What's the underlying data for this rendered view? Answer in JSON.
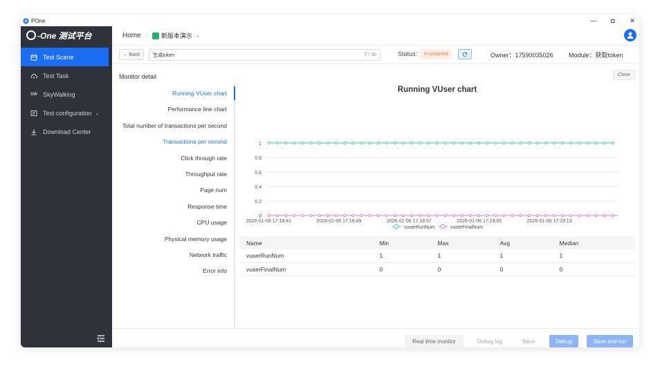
{
  "window": {
    "app_name": "POne",
    "minimize": "—",
    "restore": "◘",
    "close": "✕"
  },
  "sidebar": {
    "logo_text": "-One 测试平台",
    "items": [
      {
        "label": "Test Scene",
        "icon": "calendar-icon",
        "active": true
      },
      {
        "label": "Test Task",
        "icon": "cloud-upload-icon",
        "active": false
      },
      {
        "label": "SkyWalking",
        "icon": "skywalking-icon",
        "active": false
      },
      {
        "label": "Test configuration",
        "icon": "settings-icon",
        "active": false,
        "has_children": true
      },
      {
        "label": "Download Center",
        "icon": "download-icon",
        "active": false
      }
    ]
  },
  "header": {
    "home": "Home",
    "separator": "/",
    "project": "新版本演示",
    "dropdown": "⌄"
  },
  "toolbar": {
    "back_label": "← Back",
    "name_value": "生成token",
    "name_count": "7 / 30",
    "status_label": "Status:",
    "status_value": "In progress",
    "owner": "Owner：17590035026",
    "module": "Module：获取token"
  },
  "panel": {
    "title": "Monitor detail",
    "close_label": "Close"
  },
  "metrics": [
    {
      "label": "Running VUser chart",
      "state": "active"
    },
    {
      "label": "Performance line chart",
      "state": "normal"
    },
    {
      "label": "Total number of transactions per second",
      "state": "normal"
    },
    {
      "label": "Transactions per second",
      "state": "blue"
    },
    {
      "label": "Click through rate",
      "state": "normal"
    },
    {
      "label": "Throughput rate",
      "state": "normal"
    },
    {
      "label": "Page num",
      "state": "normal"
    },
    {
      "label": "Response time",
      "state": "normal"
    },
    {
      "label": "CPU usage",
      "state": "normal"
    },
    {
      "label": "Physical memory usage",
      "state": "normal"
    },
    {
      "label": "Network traffic",
      "state": "normal"
    },
    {
      "label": "Error info",
      "state": "normal"
    }
  ],
  "chart_data": {
    "type": "line",
    "title": "Running VUser chart",
    "xlabel": "",
    "ylabel": "",
    "ylim": [
      0,
      1
    ],
    "yticks": [
      "0",
      "0.2",
      "0.4",
      "0.6",
      "0.8",
      "1"
    ],
    "xticks": [
      "2026-01-06 17:18:41",
      "2026-01-06 17:18:49",
      "2026-01-06 17:18:57",
      "2026-01-06 17:19:05",
      "2026-01-06 17:19:13"
    ],
    "point_count": 42,
    "grid": true,
    "legend_position": "bottom-center",
    "series": [
      {
        "name": "vuserRunNum",
        "color": "#3ad29a",
        "value": 1
      },
      {
        "name": "vuserFinalNum",
        "color": "#e67cc9",
        "value": 0
      }
    ]
  },
  "stats_table": {
    "headers": [
      "Name",
      "Min",
      "Max",
      "Avg",
      "Median"
    ],
    "rows": [
      [
        "vuserRunNum",
        "1",
        "1",
        "1",
        "1"
      ],
      [
        "vuserFinalNum",
        "0",
        "0",
        "0",
        "0"
      ]
    ]
  },
  "footer": {
    "realtime": "Real time monitor",
    "debug_log": "Debug log",
    "save": "Save",
    "debug": "Debug",
    "save_run": "Save and run"
  }
}
